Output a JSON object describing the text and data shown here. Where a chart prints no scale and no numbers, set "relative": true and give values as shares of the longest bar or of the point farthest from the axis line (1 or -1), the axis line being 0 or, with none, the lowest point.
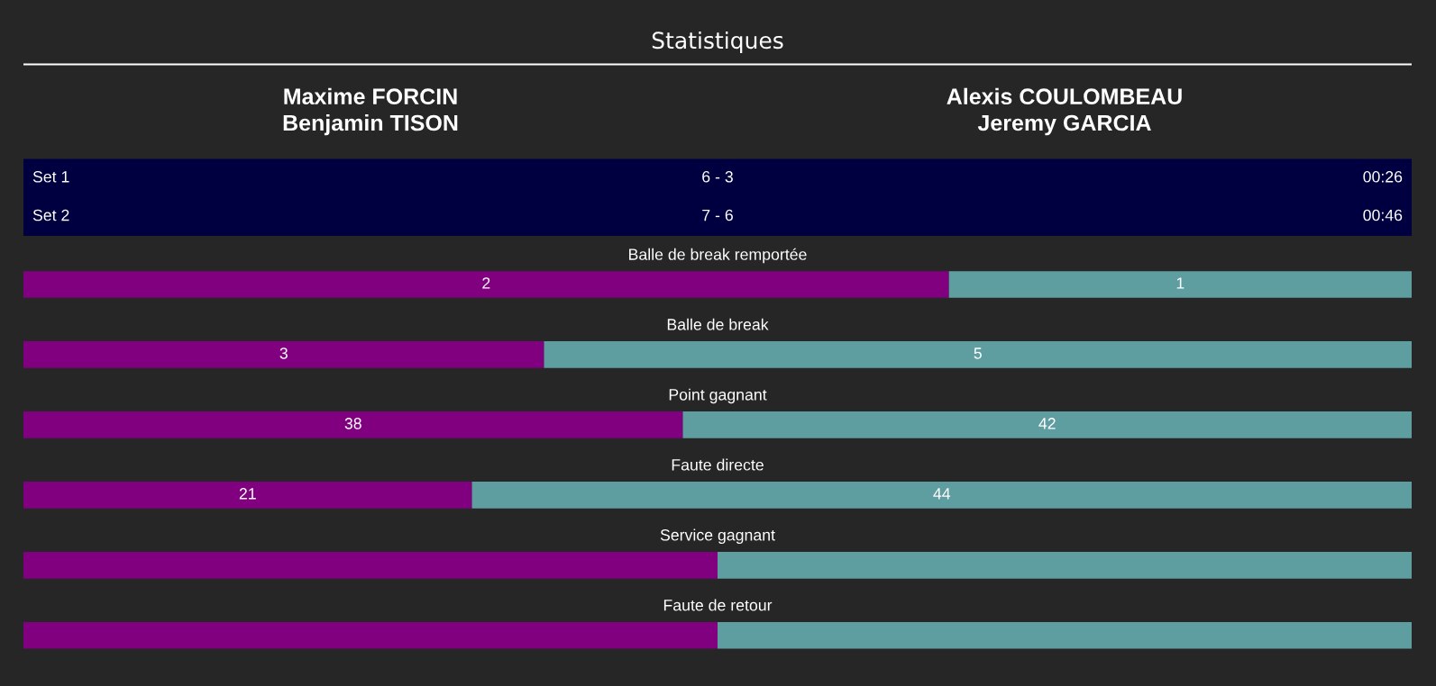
{
  "chart_data": [
    {
      "type": "other",
      "title": "Statistiques",
      "annotations": [
        "Maxime FORCIN\nBenjamin TISON",
        "Alexis COULOMBEAU\nJeremy GARCIA",
        "Set 1",
        "6 - 3",
        "00:26",
        "Set 2",
        "7 - 6",
        "00:46"
      ]
    },
    {
      "type": "bar",
      "title": "Balle de break remportée",
      "orientation": "horizontal",
      "stacked": true,
      "tick_labels": false,
      "data_labels": true,
      "categories": [
        null
      ],
      "series": [
        {
          "color": "#800080",
          "values": [
            2
          ]
        },
        {
          "color": "#5f9ea0",
          "values": [
            1
          ]
        }
      ]
    },
    {
      "type": "bar",
      "title": "Balle de break",
      "orientation": "horizontal",
      "stacked": true,
      "tick_labels": false,
      "data_labels": true,
      "categories": [
        null
      ],
      "series": [
        {
          "color": "#800080",
          "values": [
            3
          ]
        },
        {
          "color": "#5f9ea0",
          "values": [
            5
          ]
        }
      ]
    },
    {
      "type": "bar",
      "title": "Point gagnant",
      "orientation": "horizontal",
      "stacked": true,
      "tick_labels": false,
      "data_labels": true,
      "categories": [
        null
      ],
      "series": [
        {
          "color": "#800080",
          "values": [
            38
          ]
        },
        {
          "color": "#5f9ea0",
          "values": [
            42
          ]
        }
      ]
    },
    {
      "type": "bar",
      "title": "Faute directe",
      "orientation": "horizontal",
      "stacked": true,
      "tick_labels": false,
      "data_labels": true,
      "categories": [
        null
      ],
      "series": [
        {
          "color": "#800080",
          "values": [
            21
          ]
        },
        {
          "color": "#5f9ea0",
          "values": [
            44
          ]
        }
      ]
    },
    {
      "type": "bar",
      "title": "Service gagnant",
      "orientation": "horizontal",
      "stacked": true,
      "relative": true,
      "tick_labels": false,
      "categories": [
        null
      ],
      "series": [
        {
          "color": "#800080",
          "values": [
            0.5
          ]
        },
        {
          "color": "#5f9ea0",
          "values": [
            0.5
          ]
        }
      ]
    },
    {
      "type": "bar",
      "title": "Faute de retour",
      "orientation": "horizontal",
      "stacked": true,
      "relative": true,
      "tick_labels": false,
      "categories": [
        null
      ],
      "series": [
        {
          "color": "#800080",
          "values": [
            0.5
          ]
        },
        {
          "color": "#5f9ea0",
          "values": [
            0.5
          ]
        }
      ]
    }
  ]
}
